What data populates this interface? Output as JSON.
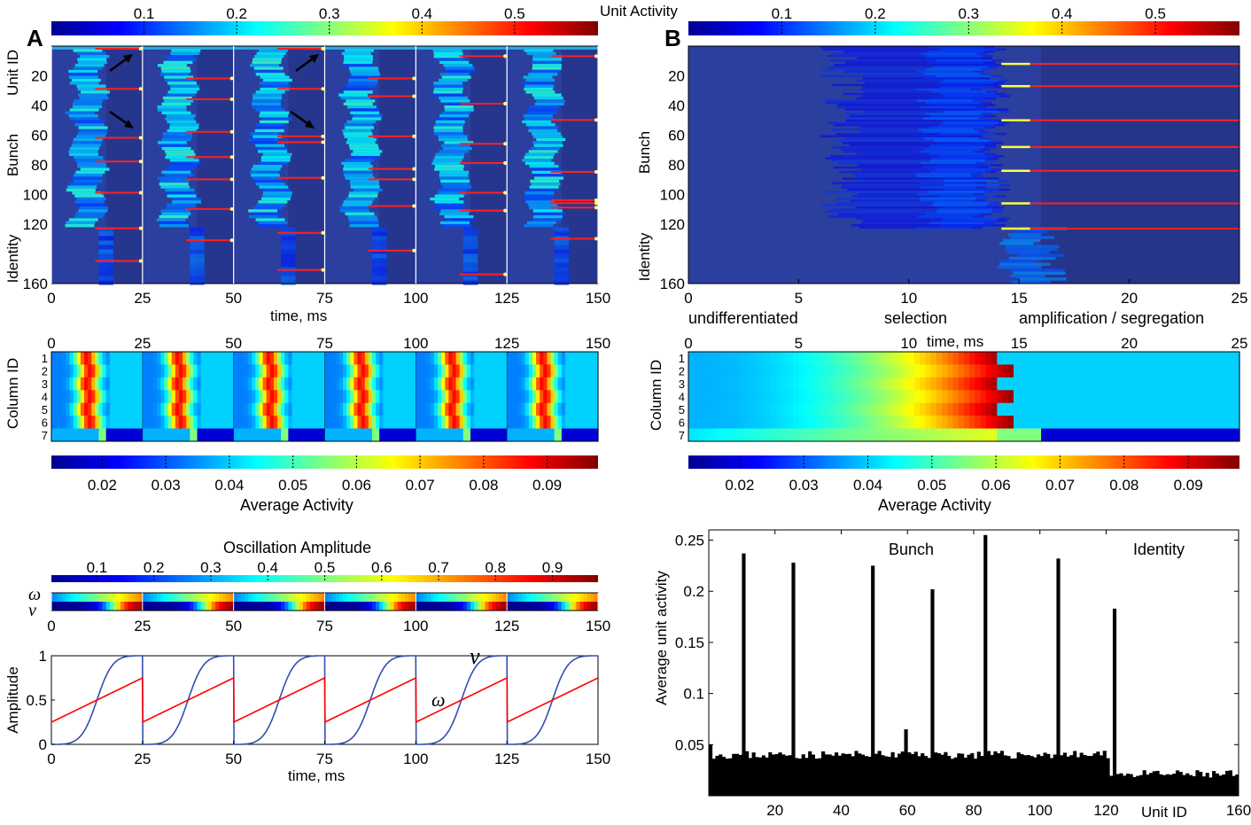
{
  "panel_labels": {
    "a": "A",
    "b": "B"
  },
  "labels": {
    "unit_activity": "Unit Activity",
    "average_activity": "Average Activity",
    "oscillation_amplitude": "Oscillation Amplitude",
    "time_ms": "time, ms",
    "unit_id": "Unit ID",
    "bunch": "Bunch",
    "identity": "Identity",
    "column_id": "Column ID",
    "amplitude": "Amplitude",
    "omega": "ω",
    "nu": "ν",
    "avg_unit_activity": "Average unit activity",
    "phase_undiff": "undifferentiated",
    "phase_selection": "selection",
    "phase_amp": "amplification / segregation"
  },
  "colors": {
    "jet": [
      "#00008f",
      "#0000ff",
      "#00ffff",
      "#ffff00",
      "#ff0000",
      "#800000"
    ],
    "bg_blue": "#2b3f9e",
    "line_red": "#ff0000",
    "line_blue": "#3050b0"
  },
  "chart_data": [
    {
      "id": "A-unit-activity",
      "type": "heatmap",
      "xlabel": "time, ms",
      "ylabel": "Unit ID",
      "colorbar_label": "Unit Activity",
      "colorbar_ticks": [
        "0.1",
        "0.2",
        "0.3",
        "0.4",
        "0.5"
      ],
      "xlim": [
        0,
        150
      ],
      "ylim": [
        0,
        160
      ],
      "xticks": [
        "0",
        "25",
        "50",
        "75",
        "100",
        "125",
        "150"
      ],
      "yticks": [
        "20",
        "40",
        "60",
        "80",
        "100",
        "120",
        "160"
      ],
      "row_groups": [
        "Bunch",
        "Identity"
      ],
      "period_ms": 25
    },
    {
      "id": "B-unit-activity",
      "type": "heatmap",
      "xlabel": "time, ms",
      "ylabel": "Unit ID",
      "colorbar_label": "Unit Activity",
      "colorbar_ticks": [
        "0.1",
        "0.2",
        "0.3",
        "0.4",
        "0.5"
      ],
      "xlim": [
        0,
        25
      ],
      "ylim": [
        0,
        160
      ],
      "xticks": [
        "0",
        "5",
        "10",
        "15",
        "20",
        "25"
      ],
      "yticks": [
        "20",
        "40",
        "60",
        "80",
        "100",
        "120",
        "160"
      ],
      "row_groups": [
        "Bunch",
        "Identity"
      ],
      "phases": [
        "undifferentiated",
        "selection",
        "amplification / segregation"
      ]
    },
    {
      "id": "A-column-activity",
      "type": "heatmap",
      "ylabel": "Column ID",
      "xlim": [
        0,
        150
      ],
      "xticks": [
        "0",
        "25",
        "50",
        "75",
        "100",
        "125",
        "150"
      ],
      "rows": [
        "1",
        "2",
        "3",
        "4",
        "5",
        "6",
        "7"
      ],
      "colorbar_label": "Average Activity",
      "colorbar_ticks": [
        "0.02",
        "0.03",
        "0.04",
        "0.05",
        "0.06",
        "0.07",
        "0.08",
        "0.09"
      ]
    },
    {
      "id": "B-column-activity",
      "type": "heatmap",
      "ylabel": "Column ID",
      "xlim": [
        0,
        25
      ],
      "xticks": [
        "0",
        "5",
        "10",
        "15",
        "20",
        "25"
      ],
      "rows": [
        "1",
        "2",
        "3",
        "4",
        "5",
        "6",
        "7"
      ],
      "colorbar_label": "Average Activity",
      "colorbar_ticks": [
        "0.02",
        "0.03",
        "0.04",
        "0.05",
        "0.06",
        "0.07",
        "0.08",
        "0.09"
      ]
    },
    {
      "id": "A-oscillation-strip",
      "type": "heatmap",
      "colorbar_label": "Oscillation Amplitude",
      "colorbar_ticks": [
        "0.1",
        "0.2",
        "0.3",
        "0.4",
        "0.5",
        "0.6",
        "0.7",
        "0.8",
        "0.9"
      ],
      "rows": [
        "ω",
        "ν"
      ],
      "xlim": [
        0,
        150
      ],
      "xticks": [
        "0",
        "25",
        "50",
        "75",
        "100",
        "125",
        "150"
      ]
    },
    {
      "id": "A-amplitude",
      "type": "line",
      "xlabel": "time, ms",
      "ylabel": "Amplitude",
      "xlim": [
        0,
        150
      ],
      "ylim": [
        0,
        1
      ],
      "xticks": [
        "0",
        "25",
        "50",
        "75",
        "100",
        "125",
        "150"
      ],
      "yticks": [
        "0",
        "0.5",
        "1"
      ],
      "period_ms": 25,
      "series": [
        {
          "name": "ν",
          "color": "#3050b0",
          "shape": "sigmoid",
          "min": 0,
          "max": 1
        },
        {
          "name": "ω",
          "color": "#ff0000",
          "shape": "ramp",
          "min": 0.25,
          "max": 0.75
        }
      ]
    },
    {
      "id": "B-average-unit-activity",
      "type": "bar",
      "xlabel": "Unit ID",
      "ylabel": "Average unit activity",
      "xlim": [
        0,
        160
      ],
      "ylim": [
        0,
        0.26
      ],
      "xticks": [
        "20",
        "40",
        "60",
        "80",
        "100",
        "120",
        "160"
      ],
      "yticks": [
        "0.05",
        "0.1",
        "0.15",
        "0.2",
        "0.25"
      ],
      "group_labels": [
        "Bunch",
        "Identity"
      ],
      "baseline_bunch": 0.04,
      "baseline_identity": 0.021,
      "peaks": [
        {
          "unit": 11,
          "value": 0.237
        },
        {
          "unit": 26,
          "value": 0.228
        },
        {
          "unit": 50,
          "value": 0.225
        },
        {
          "unit": 60,
          "value": 0.065
        },
        {
          "unit": 68,
          "value": 0.202
        },
        {
          "unit": 84,
          "value": 0.255
        },
        {
          "unit": 106,
          "value": 0.232
        },
        {
          "unit": 123,
          "value": 0.183
        }
      ]
    }
  ]
}
